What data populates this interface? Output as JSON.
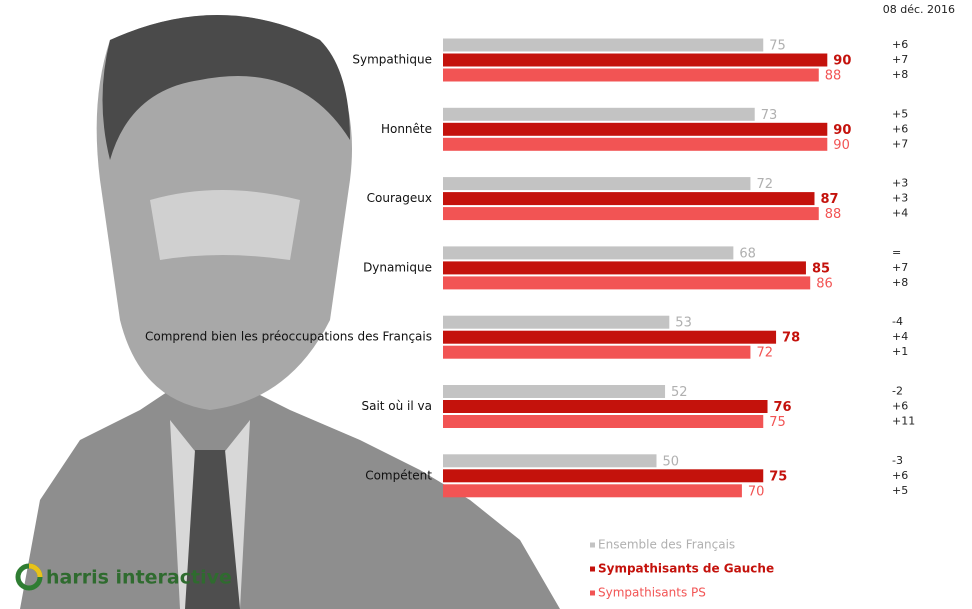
{
  "chart_data": {
    "type": "bar",
    "orientation": "horizontal",
    "subtitle": "08 déc. 2016",
    "categories": [
      "Sympathique",
      "Honnête",
      "Courageux",
      "Dynamique",
      "Comprend bien les préoccupations des Français",
      "Sait où il va",
      "Compétent"
    ],
    "series": [
      {
        "name": "Ensemble des Français",
        "color": "#c3c3c3",
        "label_color": "#b0b0b0",
        "bold": false,
        "values": [
          75,
          73,
          72,
          68,
          53,
          52,
          50
        ],
        "changes": [
          "+6",
          "+5",
          "+3",
          "=",
          "-4",
          "-2",
          "-3"
        ]
      },
      {
        "name": "Sympathisants de Gauche",
        "color": "#c4120c",
        "label_color": "#c4120c",
        "bold": true,
        "values": [
          90,
          90,
          87,
          85,
          78,
          76,
          75
        ],
        "changes": [
          "+7",
          "+6",
          "+3",
          "+7",
          "+4",
          "+6",
          "+6"
        ]
      },
      {
        "name": "Sympathisants PS",
        "color": "#f25454",
        "label_color": "#f25454",
        "bold": false,
        "values": [
          88,
          90,
          88,
          86,
          72,
          75,
          70
        ],
        "changes": [
          "+8",
          "+7",
          "+4",
          "+8",
          "+1",
          "+11",
          "+5"
        ]
      }
    ],
    "logo": "harris interactive"
  }
}
